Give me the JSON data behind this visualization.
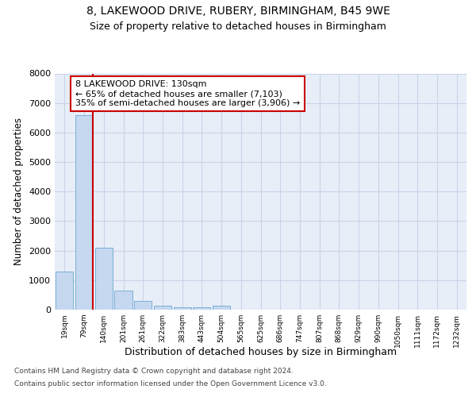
{
  "title1": "8, LAKEWOOD DRIVE, RUBERY, BIRMINGHAM, B45 9WE",
  "title2": "Size of property relative to detached houses in Birmingham",
  "xlabel": "Distribution of detached houses by size in Birmingham",
  "ylabel": "Number of detached properties",
  "bin_labels": [
    "19sqm",
    "79sqm",
    "140sqm",
    "201sqm",
    "261sqm",
    "322sqm",
    "383sqm",
    "443sqm",
    "504sqm",
    "565sqm",
    "625sqm",
    "686sqm",
    "747sqm",
    "807sqm",
    "868sqm",
    "929sqm",
    "990sqm",
    "1050sqm",
    "1111sqm",
    "1172sqm",
    "1232sqm"
  ],
  "bar_heights": [
    1300,
    6600,
    2100,
    650,
    300,
    140,
    90,
    80,
    130,
    0,
    0,
    0,
    0,
    0,
    0,
    0,
    0,
    0,
    0,
    0,
    0
  ],
  "bar_color": "#c5d8f0",
  "bar_edge_color": "#7bafd4",
  "red_line_color": "#cc0000",
  "property_bin_index": 1,
  "annotation_text": "8 LAKEWOOD DRIVE: 130sqm\n← 65% of detached houses are smaller (7,103)\n35% of semi-detached houses are larger (3,906) →",
  "annotation_box_color": "#ffffff",
  "annotation_box_edge": "#cc0000",
  "ylim": [
    0,
    8000
  ],
  "yticks": [
    0,
    1000,
    2000,
    3000,
    4000,
    5000,
    6000,
    7000,
    8000
  ],
  "grid_color": "#c8d4e8",
  "footer1": "Contains HM Land Registry data © Crown copyright and database right 2024.",
  "footer2": "Contains public sector information licensed under the Open Government Licence v3.0.",
  "background_color": "#ffffff",
  "plot_bg_color": "#e8eef8"
}
